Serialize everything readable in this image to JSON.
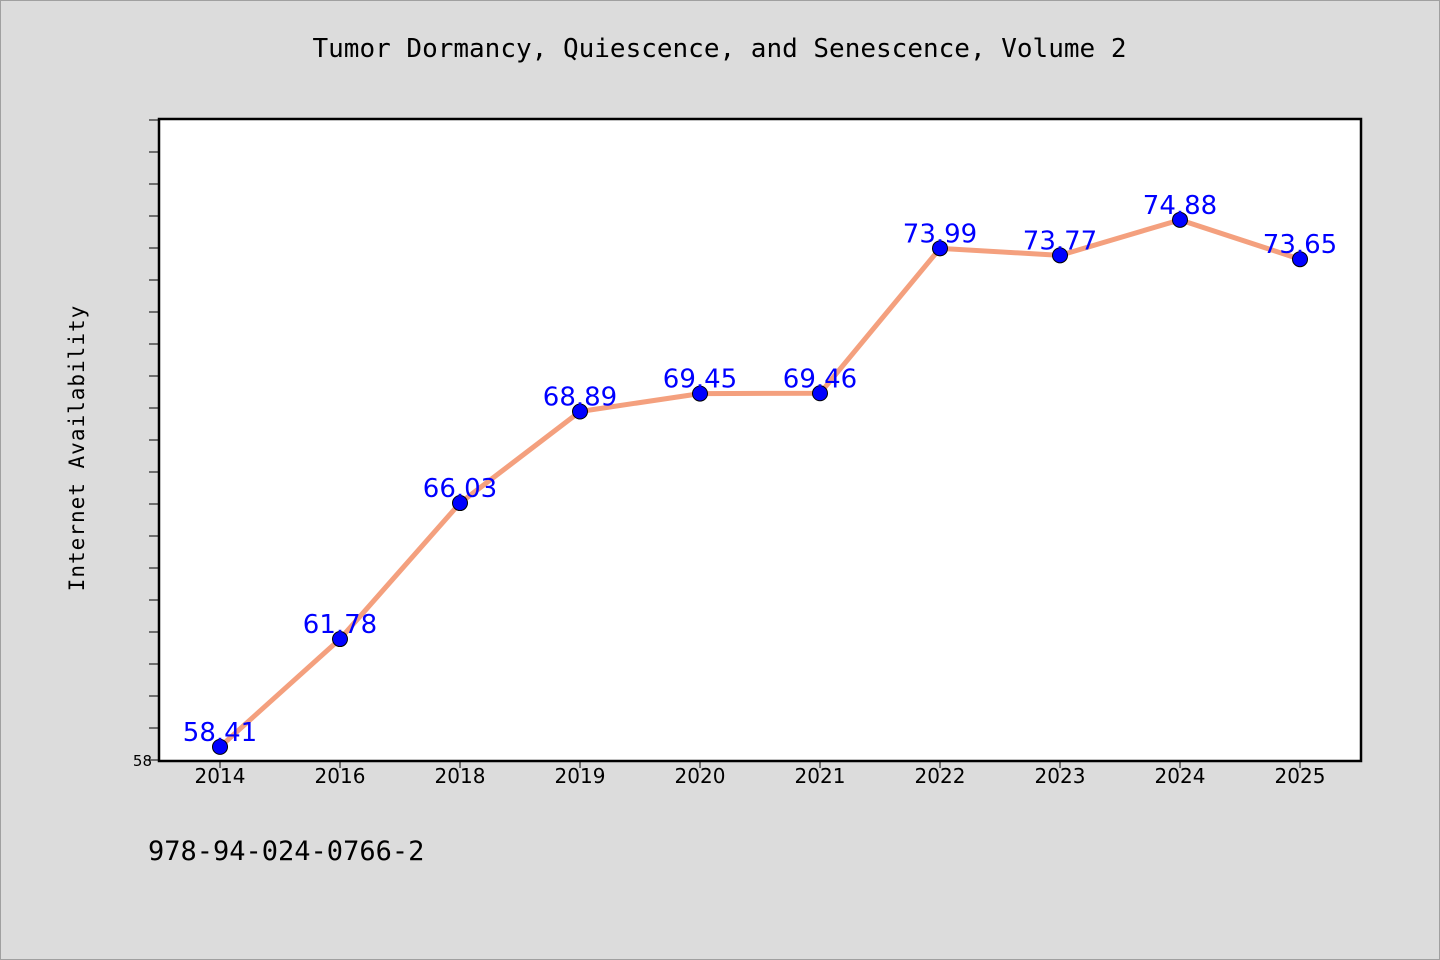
{
  "chart_data": {
    "type": "line",
    "title": "Tumor Dormancy, Quiescence, and Senescence, Volume 2",
    "xlabel": "",
    "ylabel": "Internet Availability",
    "categories": [
      "2014",
      "2016",
      "2018",
      "2019",
      "2020",
      "2021",
      "2022",
      "2023",
      "2024",
      "2025"
    ],
    "series": [
      {
        "values": [
          58.41,
          61.78,
          66.03,
          68.89,
          69.45,
          69.46,
          73.99,
          73.77,
          74.88,
          73.65
        ]
      }
    ],
    "data_labels": [
      "58.41",
      "61.78",
      "66.03",
      "68.89",
      "69.45",
      "69.46",
      "73.99",
      "73.77",
      "74.88",
      "73.65"
    ],
    "ylim": [
      58,
      78
    ],
    "ytick_label_shown": "58",
    "grid": false,
    "legend": "none",
    "colors": {
      "line": "#f4a07e",
      "marker": "#0000ff",
      "data_label": "#0000ff",
      "plot_background": "#ffffff",
      "page_background": "#dcdcdc"
    }
  },
  "footer": {
    "isbn": "978-94-024-0766-2"
  }
}
